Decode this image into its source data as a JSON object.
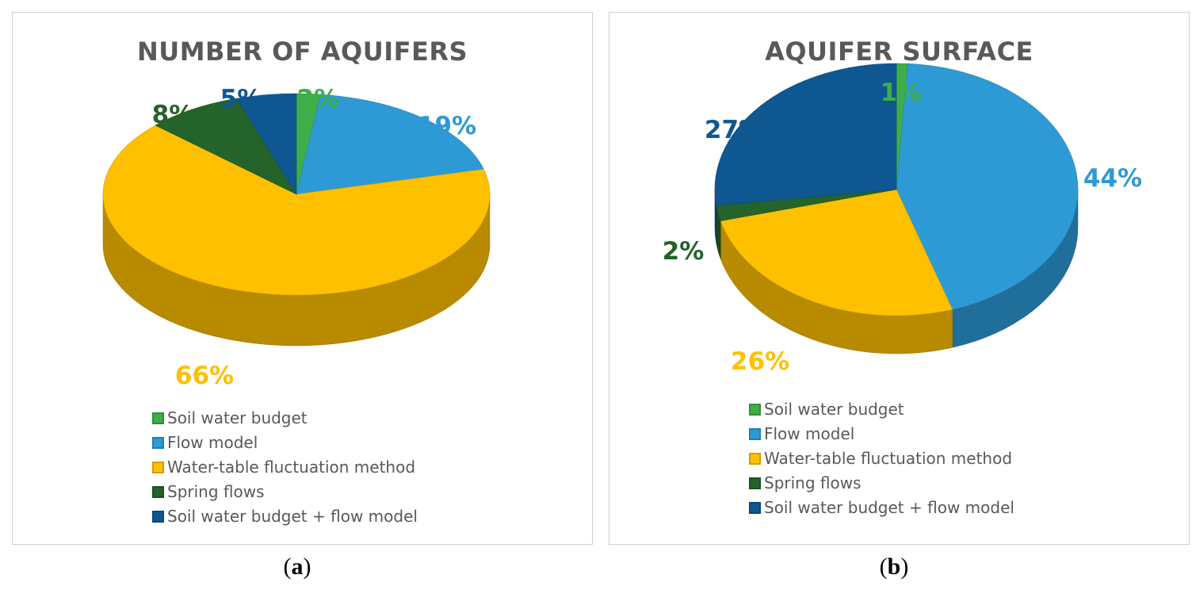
{
  "chart_data": [
    {
      "type": "pie",
      "title": "NUMBER OF AQUIFERS",
      "categories": [
        "Soil water budget",
        "Flow model",
        "Water-table fluctuation method",
        "Spring flows",
        "Soil water budget + flow model"
      ],
      "values": [
        2,
        19,
        66,
        8,
        5
      ],
      "labels": [
        "2%",
        "19%",
        "66%",
        "8%",
        "5%"
      ],
      "colors": [
        "#3fae49",
        "#2d9ad6",
        "#ffc000",
        "#24632a",
        "#0f5791"
      ],
      "label_colors": [
        "#3fae49",
        "#2d9ad6",
        "#ffc000",
        "#24632a",
        "#0f5791"
      ],
      "legend": "bottom",
      "caption": "a"
    },
    {
      "type": "pie",
      "title": "AQUIFER SURFACE",
      "categories": [
        "Soil water budget",
        "Flow model",
        "Water-table fluctuation method",
        "Spring flows",
        "Soil water budget + flow model"
      ],
      "values": [
        1,
        44,
        26,
        2,
        27
      ],
      "labels": [
        "1%",
        "44%",
        "26%",
        "2%",
        "27%"
      ],
      "colors": [
        "#3fae49",
        "#2d9ad6",
        "#ffc000",
        "#24632a",
        "#0f5791"
      ],
      "label_colors": [
        "#3fae49",
        "#2d9ad6",
        "#ffc000",
        "#24632a",
        "#0f5791"
      ],
      "legend": "bottom",
      "caption": "b"
    }
  ]
}
